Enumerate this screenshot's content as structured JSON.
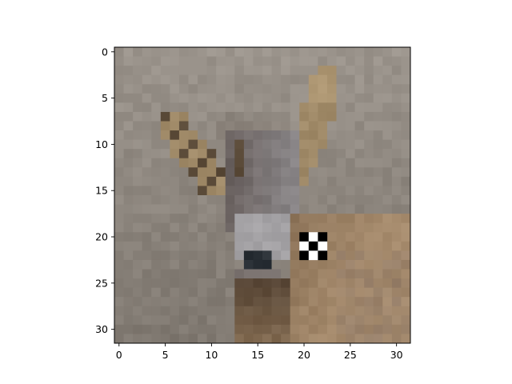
{
  "image": {
    "subject": "deer-head",
    "grid_size": [
      32,
      32
    ],
    "palette": {
      "background": "#8e877f",
      "background_light": "#9b948c",
      "background_dark": "#7f7870",
      "ear_tan": "#a08a68",
      "ear_dark": "#5a4a38",
      "face_dark": "#6a6260",
      "face_gray": "#8a8688",
      "muzzle_light": "#b5b5b8",
      "nose_dark": "#2a3036",
      "neck_brown": "#8c7358",
      "neck_dark": "#4a3a2c",
      "chest_tan": "#a58a6c"
    },
    "patch": {
      "x0": 20,
      "y0": 20,
      "size": 3,
      "dark": "#000000",
      "light": "#ffffff"
    }
  },
  "axes": {
    "xlim": [
      -0.5,
      31.5
    ],
    "ylim": [
      31.5,
      -0.5
    ],
    "x_ticks": [
      0,
      5,
      10,
      15,
      20,
      25,
      30
    ],
    "y_ticks": [
      0,
      5,
      10,
      15,
      20,
      25,
      30
    ]
  }
}
